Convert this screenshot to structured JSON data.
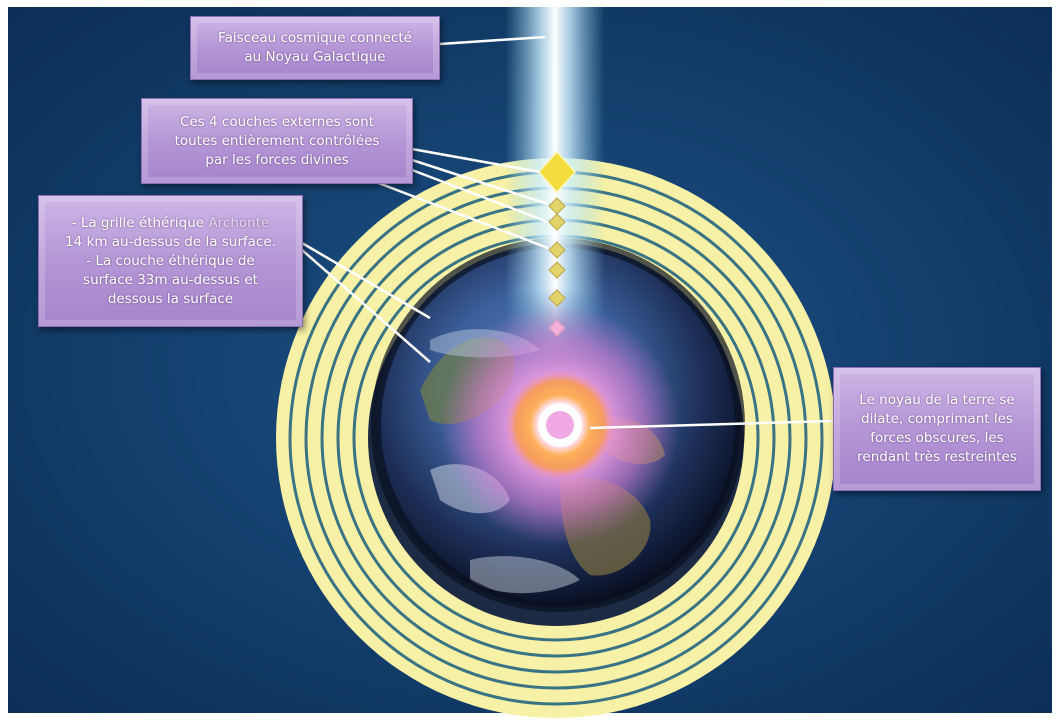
{
  "labels": {
    "beam": {
      "line1": "Faisceau cosmique connecté",
      "line2": "au Noyau Galactique"
    },
    "outer_layers": {
      "line1": "Ces 4 couches externes sont",
      "line2": "toutes entièrement contrôlées",
      "line3": "par les forces divines"
    },
    "etheric": {
      "line1_a": "- La grille éthérique",
      "line1_b": "Archonte",
      "line2": "14 km au-dessus de la surface.",
      "line3": "- La couche éthérique de",
      "line4": "surface 33m au-dessus et",
      "line5": "dessous la surface"
    },
    "core": {
      "line1": "Le noyau de la terre se",
      "line2": "dilate, comprimant les",
      "line3": "forces obscures, les",
      "line4": "rendant très restreintes"
    }
  },
  "colors": {
    "background": "#0f3a66",
    "rings": "#f7f2a6",
    "ring_lines": "#2f6b7c",
    "core_glow": "#f6a7e6",
    "core_ring": "#f6a84a",
    "diamond": "#f2dc3c",
    "beam": "#dff6ff"
  },
  "icons": [
    "diamond-marker-icon"
  ]
}
